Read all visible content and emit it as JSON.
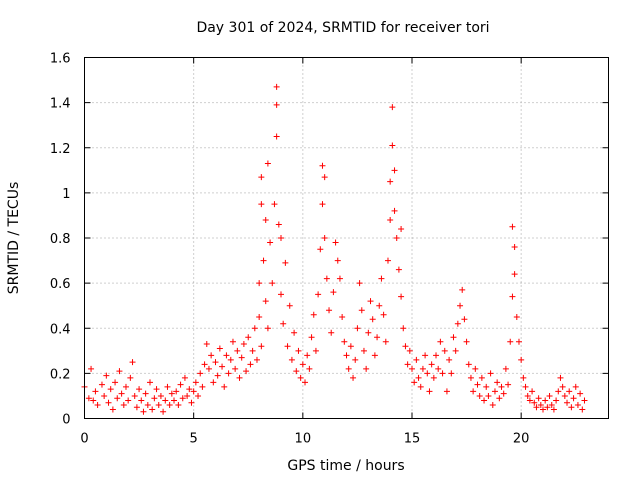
{
  "chart_data": {
    "type": "scatter",
    "title": "Day 301 of 2024, SRMTID for receiver tori",
    "xlabel": "GPS time / hours",
    "ylabel": "SRMTID / TECUs",
    "xlim": [
      0,
      24
    ],
    "ylim": [
      0,
      1.6
    ],
    "xticks": [
      0,
      5,
      10,
      15,
      20
    ],
    "xtick_labels": [
      "0",
      "5",
      "10",
      "15",
      "20"
    ],
    "yticks": [
      0,
      0.2,
      0.4,
      0.6,
      0.8,
      1,
      1.2,
      1.4,
      1.6
    ],
    "ytick_labels": [
      "0",
      "0.2",
      "0.4",
      "0.6",
      "0.8",
      "1",
      "1.2",
      "1.4",
      "1.6"
    ],
    "grid": true,
    "marker": "+",
    "series": [
      {
        "name": "SRMTID",
        "color": "#ff0000",
        "points": [
          [
            0.0,
            0.14
          ],
          [
            0.2,
            0.09
          ],
          [
            0.3,
            0.22
          ],
          [
            0.4,
            0.08
          ],
          [
            0.5,
            0.12
          ],
          [
            0.6,
            0.06
          ],
          [
            0.8,
            0.15
          ],
          [
            0.9,
            0.1
          ],
          [
            1.0,
            0.19
          ],
          [
            1.1,
            0.07
          ],
          [
            1.2,
            0.13
          ],
          [
            1.3,
            0.04
          ],
          [
            1.4,
            0.16
          ],
          [
            1.5,
            0.09
          ],
          [
            1.6,
            0.21
          ],
          [
            1.7,
            0.11
          ],
          [
            1.8,
            0.06
          ],
          [
            1.9,
            0.14
          ],
          [
            2.0,
            0.08
          ],
          [
            2.1,
            0.18
          ],
          [
            2.2,
            0.25
          ],
          [
            2.3,
            0.1
          ],
          [
            2.4,
            0.05
          ],
          [
            2.5,
            0.13
          ],
          [
            2.6,
            0.08
          ],
          [
            2.7,
            0.03
          ],
          [
            2.8,
            0.11
          ],
          [
            2.9,
            0.06
          ],
          [
            3.0,
            0.16
          ],
          [
            3.1,
            0.04
          ],
          [
            3.2,
            0.09
          ],
          [
            3.3,
            0.13
          ],
          [
            3.4,
            0.06
          ],
          [
            3.5,
            0.1
          ],
          [
            3.6,
            0.03
          ],
          [
            3.7,
            0.08
          ],
          [
            3.8,
            0.14
          ],
          [
            3.9,
            0.06
          ],
          [
            4.0,
            0.11
          ],
          [
            4.1,
            0.08
          ],
          [
            4.2,
            0.12
          ],
          [
            4.3,
            0.06
          ],
          [
            4.4,
            0.15
          ],
          [
            4.5,
            0.09
          ],
          [
            4.6,
            0.18
          ],
          [
            4.7,
            0.1
          ],
          [
            4.8,
            0.13
          ],
          [
            4.9,
            0.07
          ],
          [
            5.0,
            0.12
          ],
          [
            5.1,
            0.16
          ],
          [
            5.2,
            0.1
          ],
          [
            5.3,
            0.2
          ],
          [
            5.4,
            0.14
          ],
          [
            5.5,
            0.24
          ],
          [
            5.6,
            0.33
          ],
          [
            5.7,
            0.22
          ],
          [
            5.8,
            0.28
          ],
          [
            5.9,
            0.16
          ],
          [
            6.0,
            0.25
          ],
          [
            6.1,
            0.19
          ],
          [
            6.2,
            0.31
          ],
          [
            6.3,
            0.23
          ],
          [
            6.4,
            0.14
          ],
          [
            6.5,
            0.28
          ],
          [
            6.6,
            0.2
          ],
          [
            6.7,
            0.26
          ],
          [
            6.8,
            0.34
          ],
          [
            6.9,
            0.22
          ],
          [
            7.0,
            0.3
          ],
          [
            7.1,
            0.18
          ],
          [
            7.2,
            0.27
          ],
          [
            7.3,
            0.33
          ],
          [
            7.4,
            0.21
          ],
          [
            7.5,
            0.36
          ],
          [
            7.6,
            0.24
          ],
          [
            7.7,
            0.3
          ],
          [
            7.8,
            0.4
          ],
          [
            7.9,
            0.26
          ],
          [
            8.0,
            0.45
          ],
          [
            8.1,
            0.32
          ],
          [
            8.0,
            0.6
          ],
          [
            8.1,
            0.95
          ],
          [
            8.1,
            1.07
          ],
          [
            8.2,
            0.7
          ],
          [
            8.3,
            0.52
          ],
          [
            8.3,
            0.88
          ],
          [
            8.4,
            1.13
          ],
          [
            8.4,
            0.4
          ],
          [
            8.5,
            0.78
          ],
          [
            8.6,
            0.6
          ],
          [
            8.7,
            0.95
          ],
          [
            8.8,
            1.47
          ],
          [
            8.8,
            1.39
          ],
          [
            8.8,
            1.25
          ],
          [
            8.9,
            0.86
          ],
          [
            9.0,
            0.8
          ],
          [
            9.0,
            0.55
          ],
          [
            9.1,
            0.42
          ],
          [
            9.2,
            0.69
          ],
          [
            9.3,
            0.32
          ],
          [
            9.4,
            0.5
          ],
          [
            9.5,
            0.26
          ],
          [
            9.6,
            0.38
          ],
          [
            9.7,
            0.21
          ],
          [
            9.8,
            0.3
          ],
          [
            9.9,
            0.18
          ],
          [
            10.0,
            0.24
          ],
          [
            10.1,
            0.16
          ],
          [
            10.2,
            0.28
          ],
          [
            10.3,
            0.22
          ],
          [
            10.4,
            0.36
          ],
          [
            10.5,
            0.46
          ],
          [
            10.6,
            0.3
          ],
          [
            10.7,
            0.55
          ],
          [
            10.8,
            0.75
          ],
          [
            10.9,
            0.95
          ],
          [
            10.9,
            1.12
          ],
          [
            11.0,
            1.07
          ],
          [
            11.0,
            0.8
          ],
          [
            11.1,
            0.62
          ],
          [
            11.2,
            0.48
          ],
          [
            11.3,
            0.38
          ],
          [
            11.4,
            0.56
          ],
          [
            11.5,
            0.78
          ],
          [
            11.6,
            0.7
          ],
          [
            11.7,
            0.62
          ],
          [
            11.8,
            0.45
          ],
          [
            11.9,
            0.34
          ],
          [
            12.0,
            0.28
          ],
          [
            12.1,
            0.22
          ],
          [
            12.2,
            0.32
          ],
          [
            12.3,
            0.18
          ],
          [
            12.4,
            0.26
          ],
          [
            12.5,
            0.4
          ],
          [
            12.6,
            0.6
          ],
          [
            12.7,
            0.48
          ],
          [
            12.8,
            0.3
          ],
          [
            12.9,
            0.22
          ],
          [
            13.0,
            0.38
          ],
          [
            13.1,
            0.52
          ],
          [
            13.2,
            0.44
          ],
          [
            13.3,
            0.28
          ],
          [
            13.4,
            0.36
          ],
          [
            13.5,
            0.5
          ],
          [
            13.6,
            0.62
          ],
          [
            13.7,
            0.46
          ],
          [
            13.8,
            0.34
          ],
          [
            13.9,
            0.7
          ],
          [
            14.0,
            0.88
          ],
          [
            14.0,
            1.05
          ],
          [
            14.1,
            1.21
          ],
          [
            14.1,
            1.38
          ],
          [
            14.2,
            1.1
          ],
          [
            14.2,
            0.92
          ],
          [
            14.3,
            0.8
          ],
          [
            14.4,
            0.66
          ],
          [
            14.5,
            0.54
          ],
          [
            14.5,
            0.84
          ],
          [
            14.6,
            0.4
          ],
          [
            14.7,
            0.32
          ],
          [
            14.8,
            0.24
          ],
          [
            14.9,
            0.3
          ],
          [
            15.0,
            0.22
          ],
          [
            15.1,
            0.16
          ],
          [
            15.2,
            0.26
          ],
          [
            15.3,
            0.18
          ],
          [
            15.4,
            0.14
          ],
          [
            15.5,
            0.22
          ],
          [
            15.6,
            0.28
          ],
          [
            15.7,
            0.2
          ],
          [
            15.8,
            0.12
          ],
          [
            15.9,
            0.24
          ],
          [
            16.0,
            0.18
          ],
          [
            16.1,
            0.28
          ],
          [
            16.2,
            0.22
          ],
          [
            16.3,
            0.34
          ],
          [
            16.4,
            0.2
          ],
          [
            16.5,
            0.3
          ],
          [
            16.6,
            0.12
          ],
          [
            16.7,
            0.26
          ],
          [
            16.8,
            0.2
          ],
          [
            16.9,
            0.36
          ],
          [
            17.0,
            0.3
          ],
          [
            17.1,
            0.42
          ],
          [
            17.2,
            0.5
          ],
          [
            17.3,
            0.57
          ],
          [
            17.4,
            0.44
          ],
          [
            17.5,
            0.34
          ],
          [
            17.6,
            0.24
          ],
          [
            17.7,
            0.18
          ],
          [
            17.8,
            0.12
          ],
          [
            17.9,
            0.22
          ],
          [
            18.0,
            0.15
          ],
          [
            18.1,
            0.1
          ],
          [
            18.2,
            0.18
          ],
          [
            18.3,
            0.08
          ],
          [
            18.4,
            0.14
          ],
          [
            18.5,
            0.1
          ],
          [
            18.6,
            0.2
          ],
          [
            18.7,
            0.06
          ],
          [
            18.8,
            0.12
          ],
          [
            18.9,
            0.16
          ],
          [
            19.0,
            0.09
          ],
          [
            19.1,
            0.14
          ],
          [
            19.2,
            0.11
          ],
          [
            19.3,
            0.22
          ],
          [
            19.4,
            0.15
          ],
          [
            19.5,
            0.34
          ],
          [
            19.6,
            0.54
          ],
          [
            19.6,
            0.85
          ],
          [
            19.7,
            0.76
          ],
          [
            19.7,
            0.64
          ],
          [
            19.8,
            0.45
          ],
          [
            19.9,
            0.34
          ],
          [
            20.0,
            0.26
          ],
          [
            20.1,
            0.18
          ],
          [
            20.2,
            0.14
          ],
          [
            20.3,
            0.1
          ],
          [
            20.4,
            0.08
          ],
          [
            20.5,
            0.12
          ],
          [
            20.6,
            0.07
          ],
          [
            20.7,
            0.05
          ],
          [
            20.8,
            0.09
          ],
          [
            20.9,
            0.06
          ],
          [
            21.0,
            0.04
          ],
          [
            21.1,
            0.08
          ],
          [
            21.2,
            0.05
          ],
          [
            21.3,
            0.1
          ],
          [
            21.4,
            0.06
          ],
          [
            21.5,
            0.04
          ],
          [
            21.6,
            0.08
          ],
          [
            21.7,
            0.12
          ],
          [
            21.8,
            0.18
          ],
          [
            21.9,
            0.14
          ],
          [
            22.0,
            0.1
          ],
          [
            22.1,
            0.07
          ],
          [
            22.2,
            0.12
          ],
          [
            22.3,
            0.05
          ],
          [
            22.4,
            0.09
          ],
          [
            22.5,
            0.14
          ],
          [
            22.6,
            0.06
          ],
          [
            22.7,
            0.11
          ],
          [
            22.8,
            0.04
          ],
          [
            22.9,
            0.08
          ]
        ]
      }
    ]
  }
}
